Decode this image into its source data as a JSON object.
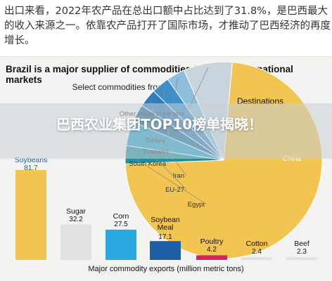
{
  "article": {
    "text": "出口来看，2022年农产品在总出口额中占比达到了31.8%，是巴西最大的收入来源之一。依靠农产品打开了国际市场，才推动了巴西经济的再度增长。"
  },
  "overlay": {
    "title": "巴西农业集团TOP10榜单揭晓！"
  },
  "colors": {
    "soybeans": "#f2c451",
    "gray_bar": "#e1e1e1",
    "corn": "#29a8df",
    "meal": "#1f5fa8",
    "poultry": "#d62463",
    "china": "#f2c451",
    "pie_small": "#5aa5d8"
  },
  "chart_data": [
    {
      "type": "bar",
      "title": "Brazil is a major supplier of commodities for many international markets",
      "subtitle": "Select commodities from Brazil and where they go",
      "xlabel": "Major commodity exports (million metric tons)",
      "categories": [
        "Soybeans",
        "Sugar",
        "Corn",
        "Soybean Meal",
        "Poultry",
        "Cotton",
        "Beef"
      ],
      "values": [
        81.7,
        32.2,
        27.5,
        17.1,
        4.2,
        2.4,
        2.3
      ],
      "value_labels": [
        "81.7",
        "32.2",
        "27.5",
        "17.1",
        "4.2",
        "2.4",
        "2.3"
      ]
    },
    {
      "type": "pie",
      "title": "Destinations",
      "labels": [
        "China",
        "Other major importers",
        "Turkey",
        "Thailand",
        "South Korea",
        "Iran",
        "EU-27",
        "Egypt"
      ],
      "values": [
        73,
        8,
        3,
        3,
        3,
        3,
        4,
        3
      ]
    }
  ]
}
